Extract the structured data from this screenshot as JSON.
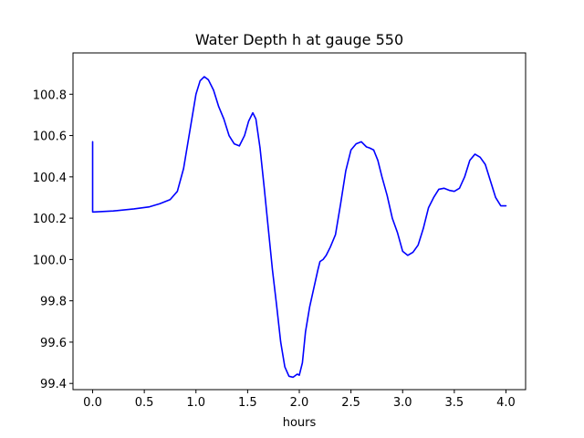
{
  "chart_data": {
    "type": "line",
    "title": "Water Depth h at gauge 550",
    "xlabel": "hours",
    "ylabel": "",
    "xlim": [
      -0.19,
      4.19
    ],
    "ylim": [
      99.37,
      101.0
    ],
    "xticks": [
      0.0,
      0.5,
      1.0,
      1.5,
      2.0,
      2.5,
      3.0,
      3.5,
      4.0
    ],
    "xtick_labels": [
      "0.0",
      "0.5",
      "1.0",
      "1.5",
      "2.0",
      "2.5",
      "3.0",
      "3.5",
      "4.0"
    ],
    "yticks": [
      99.4,
      99.6,
      99.8,
      100.0,
      100.2,
      100.4,
      100.6,
      100.8
    ],
    "ytick_labels": [
      "99.4",
      "99.6",
      "99.8",
      "100.0",
      "100.2",
      "100.4",
      "100.6",
      "100.8"
    ],
    "grid": false,
    "series": [
      {
        "color": "#0000ff",
        "x": [
          0.0,
          0.0,
          0.01,
          0.2,
          0.4,
          0.55,
          0.65,
          0.75,
          0.82,
          0.88,
          0.94,
          1.0,
          1.04,
          1.08,
          1.12,
          1.17,
          1.22,
          1.27,
          1.32,
          1.37,
          1.42,
          1.47,
          1.51,
          1.55,
          1.58,
          1.62,
          1.66,
          1.7,
          1.74,
          1.78,
          1.82,
          1.86,
          1.9,
          1.94,
          1.98,
          2.0,
          2.03,
          2.06,
          2.1,
          2.14,
          2.18,
          2.2,
          2.23,
          2.26,
          2.3,
          2.35,
          2.4,
          2.45,
          2.5,
          2.55,
          2.6,
          2.65,
          2.68,
          2.72,
          2.76,
          2.8,
          2.85,
          2.9,
          2.95,
          3.0,
          3.05,
          3.1,
          3.15,
          3.2,
          3.25,
          3.3,
          3.35,
          3.4,
          3.45,
          3.5,
          3.55,
          3.6,
          3.65,
          3.7,
          3.75,
          3.8,
          3.85,
          3.9,
          3.95,
          4.0
        ],
        "y": [
          100.57,
          100.23,
          100.23,
          100.235,
          100.245,
          100.255,
          100.27,
          100.29,
          100.33,
          100.44,
          100.62,
          100.8,
          100.865,
          100.885,
          100.87,
          100.82,
          100.74,
          100.68,
          100.6,
          100.56,
          100.55,
          100.6,
          100.67,
          100.71,
          100.68,
          100.54,
          100.35,
          100.15,
          99.95,
          99.78,
          99.6,
          99.48,
          99.435,
          99.43,
          99.445,
          99.44,
          99.5,
          99.65,
          99.77,
          99.86,
          99.95,
          99.99,
          100.0,
          100.02,
          100.06,
          100.12,
          100.27,
          100.43,
          100.53,
          100.56,
          100.57,
          100.545,
          100.54,
          100.53,
          100.48,
          100.4,
          100.31,
          100.2,
          100.13,
          100.04,
          100.02,
          100.035,
          100.07,
          100.15,
          100.25,
          100.3,
          100.34,
          100.345,
          100.335,
          100.33,
          100.345,
          100.4,
          100.48,
          100.51,
          100.495,
          100.46,
          100.38,
          100.3,
          100.26,
          100.26
        ]
      }
    ]
  }
}
